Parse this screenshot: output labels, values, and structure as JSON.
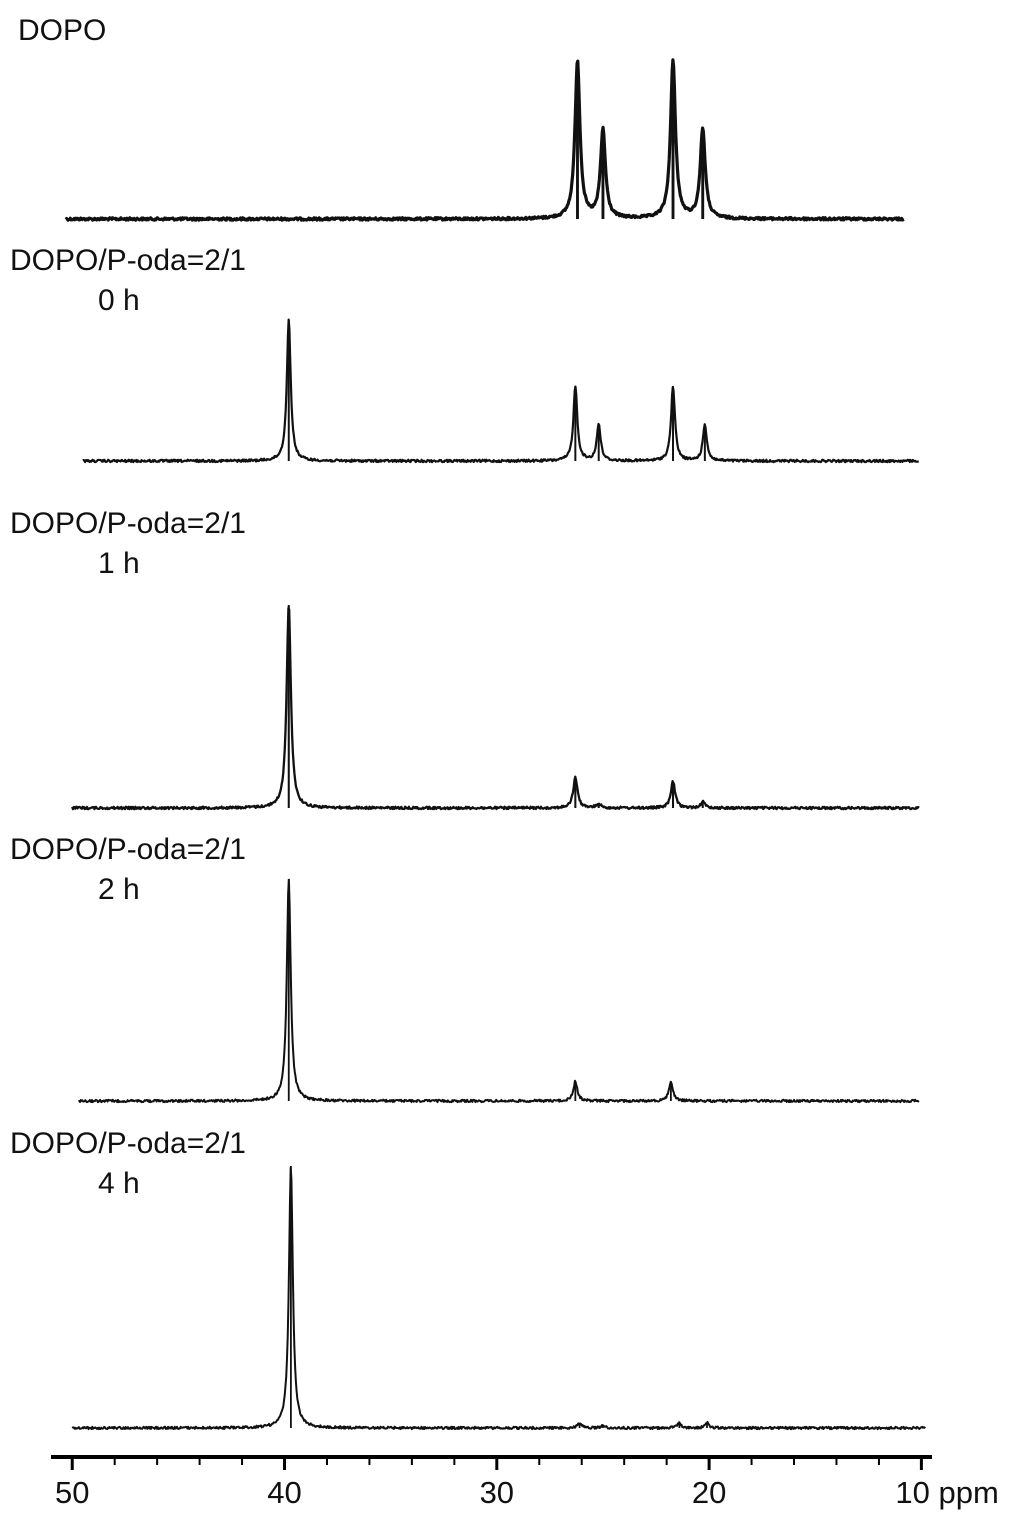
{
  "chart_data": {
    "type": "line",
    "title": "",
    "xlabel": "",
    "x_unit": "ppm",
    "x_reversed": true,
    "xlim": [
      51,
      9.5
    ],
    "ticks": [
      {
        "value": 50,
        "label": "50"
      },
      {
        "value": 40,
        "label": "40"
      },
      {
        "value": 30,
        "label": "30"
      },
      {
        "value": 20,
        "label": "20"
      },
      {
        "value": 10,
        "label": "10 ppm"
      }
    ],
    "grid": false,
    "series": [
      {
        "name": "DOPO",
        "label_lines": [
          "DOPO"
        ],
        "x_start": 50.3,
        "x_end": 10.8,
        "peaks": [
          {
            "ppm": 26.2,
            "height": 1.0
          },
          {
            "ppm": 25.0,
            "height": 0.56
          },
          {
            "ppm": 21.7,
            "height": 1.0
          },
          {
            "ppm": 20.3,
            "height": 0.57
          }
        ]
      },
      {
        "name": "DOPO/P-oda=2/1 0 h",
        "label_lines": [
          "DOPO/P-oda=2/1",
          "0 h"
        ],
        "x_start": 49.5,
        "x_end": 10.1,
        "peaks": [
          {
            "ppm": 39.8,
            "height": 1.0
          },
          {
            "ppm": 26.3,
            "height": 0.53
          },
          {
            "ppm": 25.2,
            "height": 0.26
          },
          {
            "ppm": 21.7,
            "height": 0.53
          },
          {
            "ppm": 20.2,
            "height": 0.26
          }
        ]
      },
      {
        "name": "DOPO/P-oda=2/1 1 h",
        "label_lines": [
          "DOPO/P-oda=2/1",
          "1 h"
        ],
        "x_start": 50.0,
        "x_end": 10.1,
        "peaks": [
          {
            "ppm": 39.8,
            "height": 1.0
          },
          {
            "ppm": 26.3,
            "height": 0.15
          },
          {
            "ppm": 25.2,
            "height": 0.02
          },
          {
            "ppm": 21.7,
            "height": 0.13
          },
          {
            "ppm": 20.3,
            "height": 0.03
          }
        ]
      },
      {
        "name": "DOPO/P-oda=2/1 2 h",
        "label_lines": [
          "DOPO/P-oda=2/1",
          "2 h"
        ],
        "x_start": 49.7,
        "x_end": 10.1,
        "peaks": [
          {
            "ppm": 39.8,
            "height": 1.0
          },
          {
            "ppm": 26.3,
            "height": 0.09
          },
          {
            "ppm": 21.8,
            "height": 0.09
          }
        ]
      },
      {
        "name": "DOPO/P-oda=2/1 4 h",
        "label_lines": [
          "DOPO/P-oda=2/1",
          "4 h"
        ],
        "x_start": 50.0,
        "x_end": 9.8,
        "peaks": [
          {
            "ppm": 39.7,
            "height": 1.0
          },
          {
            "ppm": 26.1,
            "height": 0.02
          },
          {
            "ppm": 25.0,
            "height": 0.01
          },
          {
            "ppm": 21.4,
            "height": 0.02
          },
          {
            "ppm": 20.1,
            "height": 0.02
          }
        ]
      }
    ]
  },
  "colors": {
    "trace": "#111111",
    "axis": "#000000",
    "text": "#111111"
  }
}
